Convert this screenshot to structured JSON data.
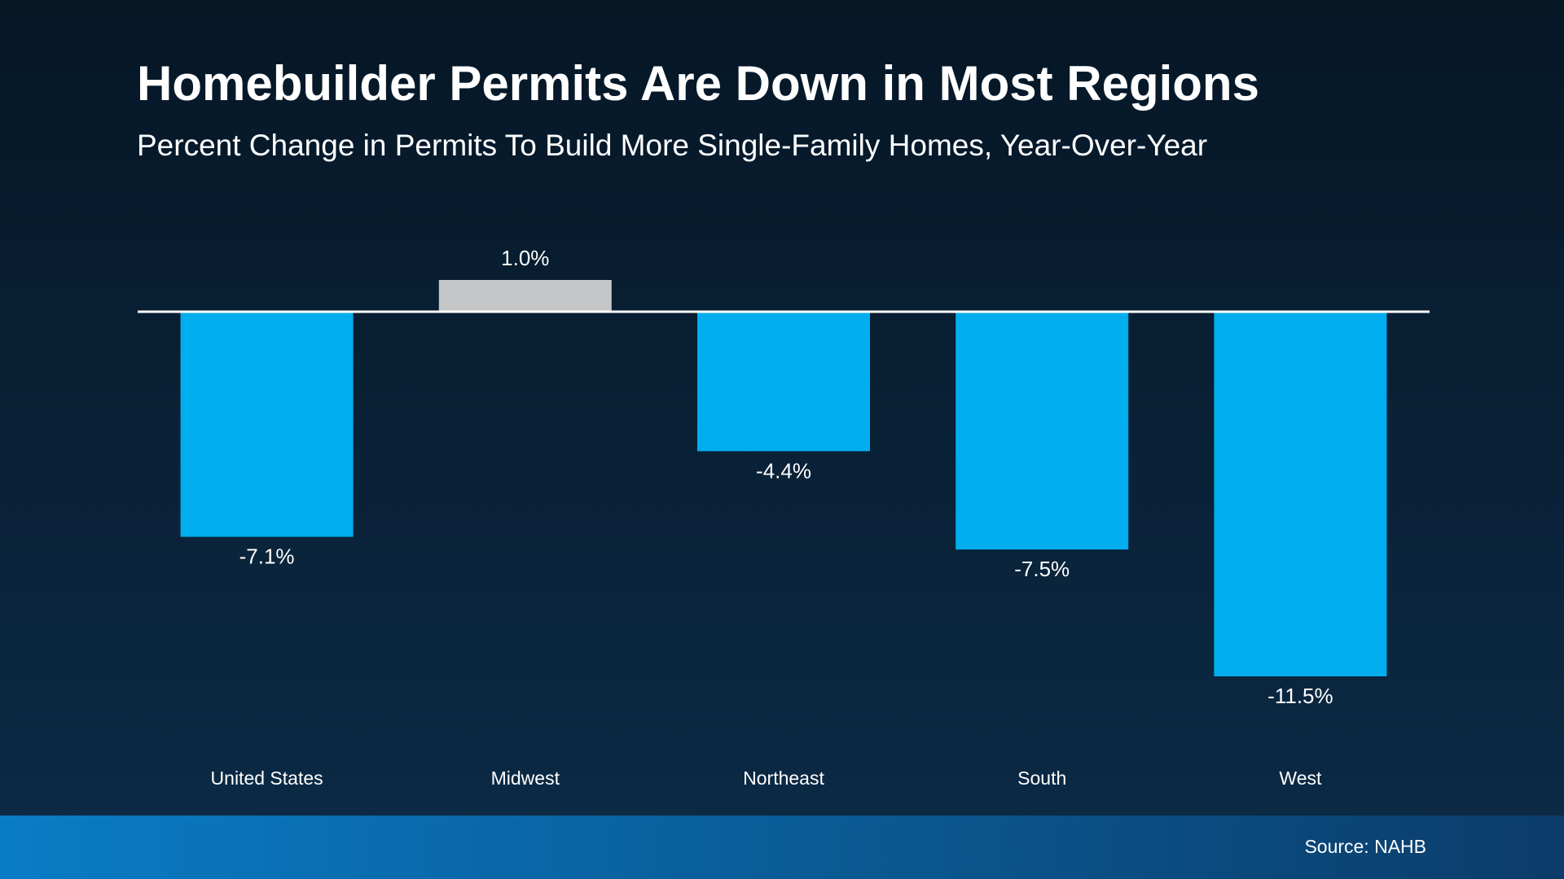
{
  "chart_data": {
    "type": "bar",
    "title": "Homebuilder Permits Are Down in Most Regions",
    "subtitle": "Percent Change in Permits To Build More Single-Family Homes, Year-Over-Year",
    "categories": [
      "United States",
      "Midwest",
      "Northeast",
      "South",
      "West"
    ],
    "values": [
      -7.1,
      1.0,
      -4.4,
      -7.5,
      -11.5
    ],
    "value_labels": [
      "-7.1%",
      "1.0%",
      "-4.4%",
      "-7.5%",
      "-11.5%"
    ],
    "colors": [
      "#00aeef",
      "#c4c6c8",
      "#00aeef",
      "#00aeef",
      "#00aeef"
    ],
    "source": "Source: NAHB"
  }
}
